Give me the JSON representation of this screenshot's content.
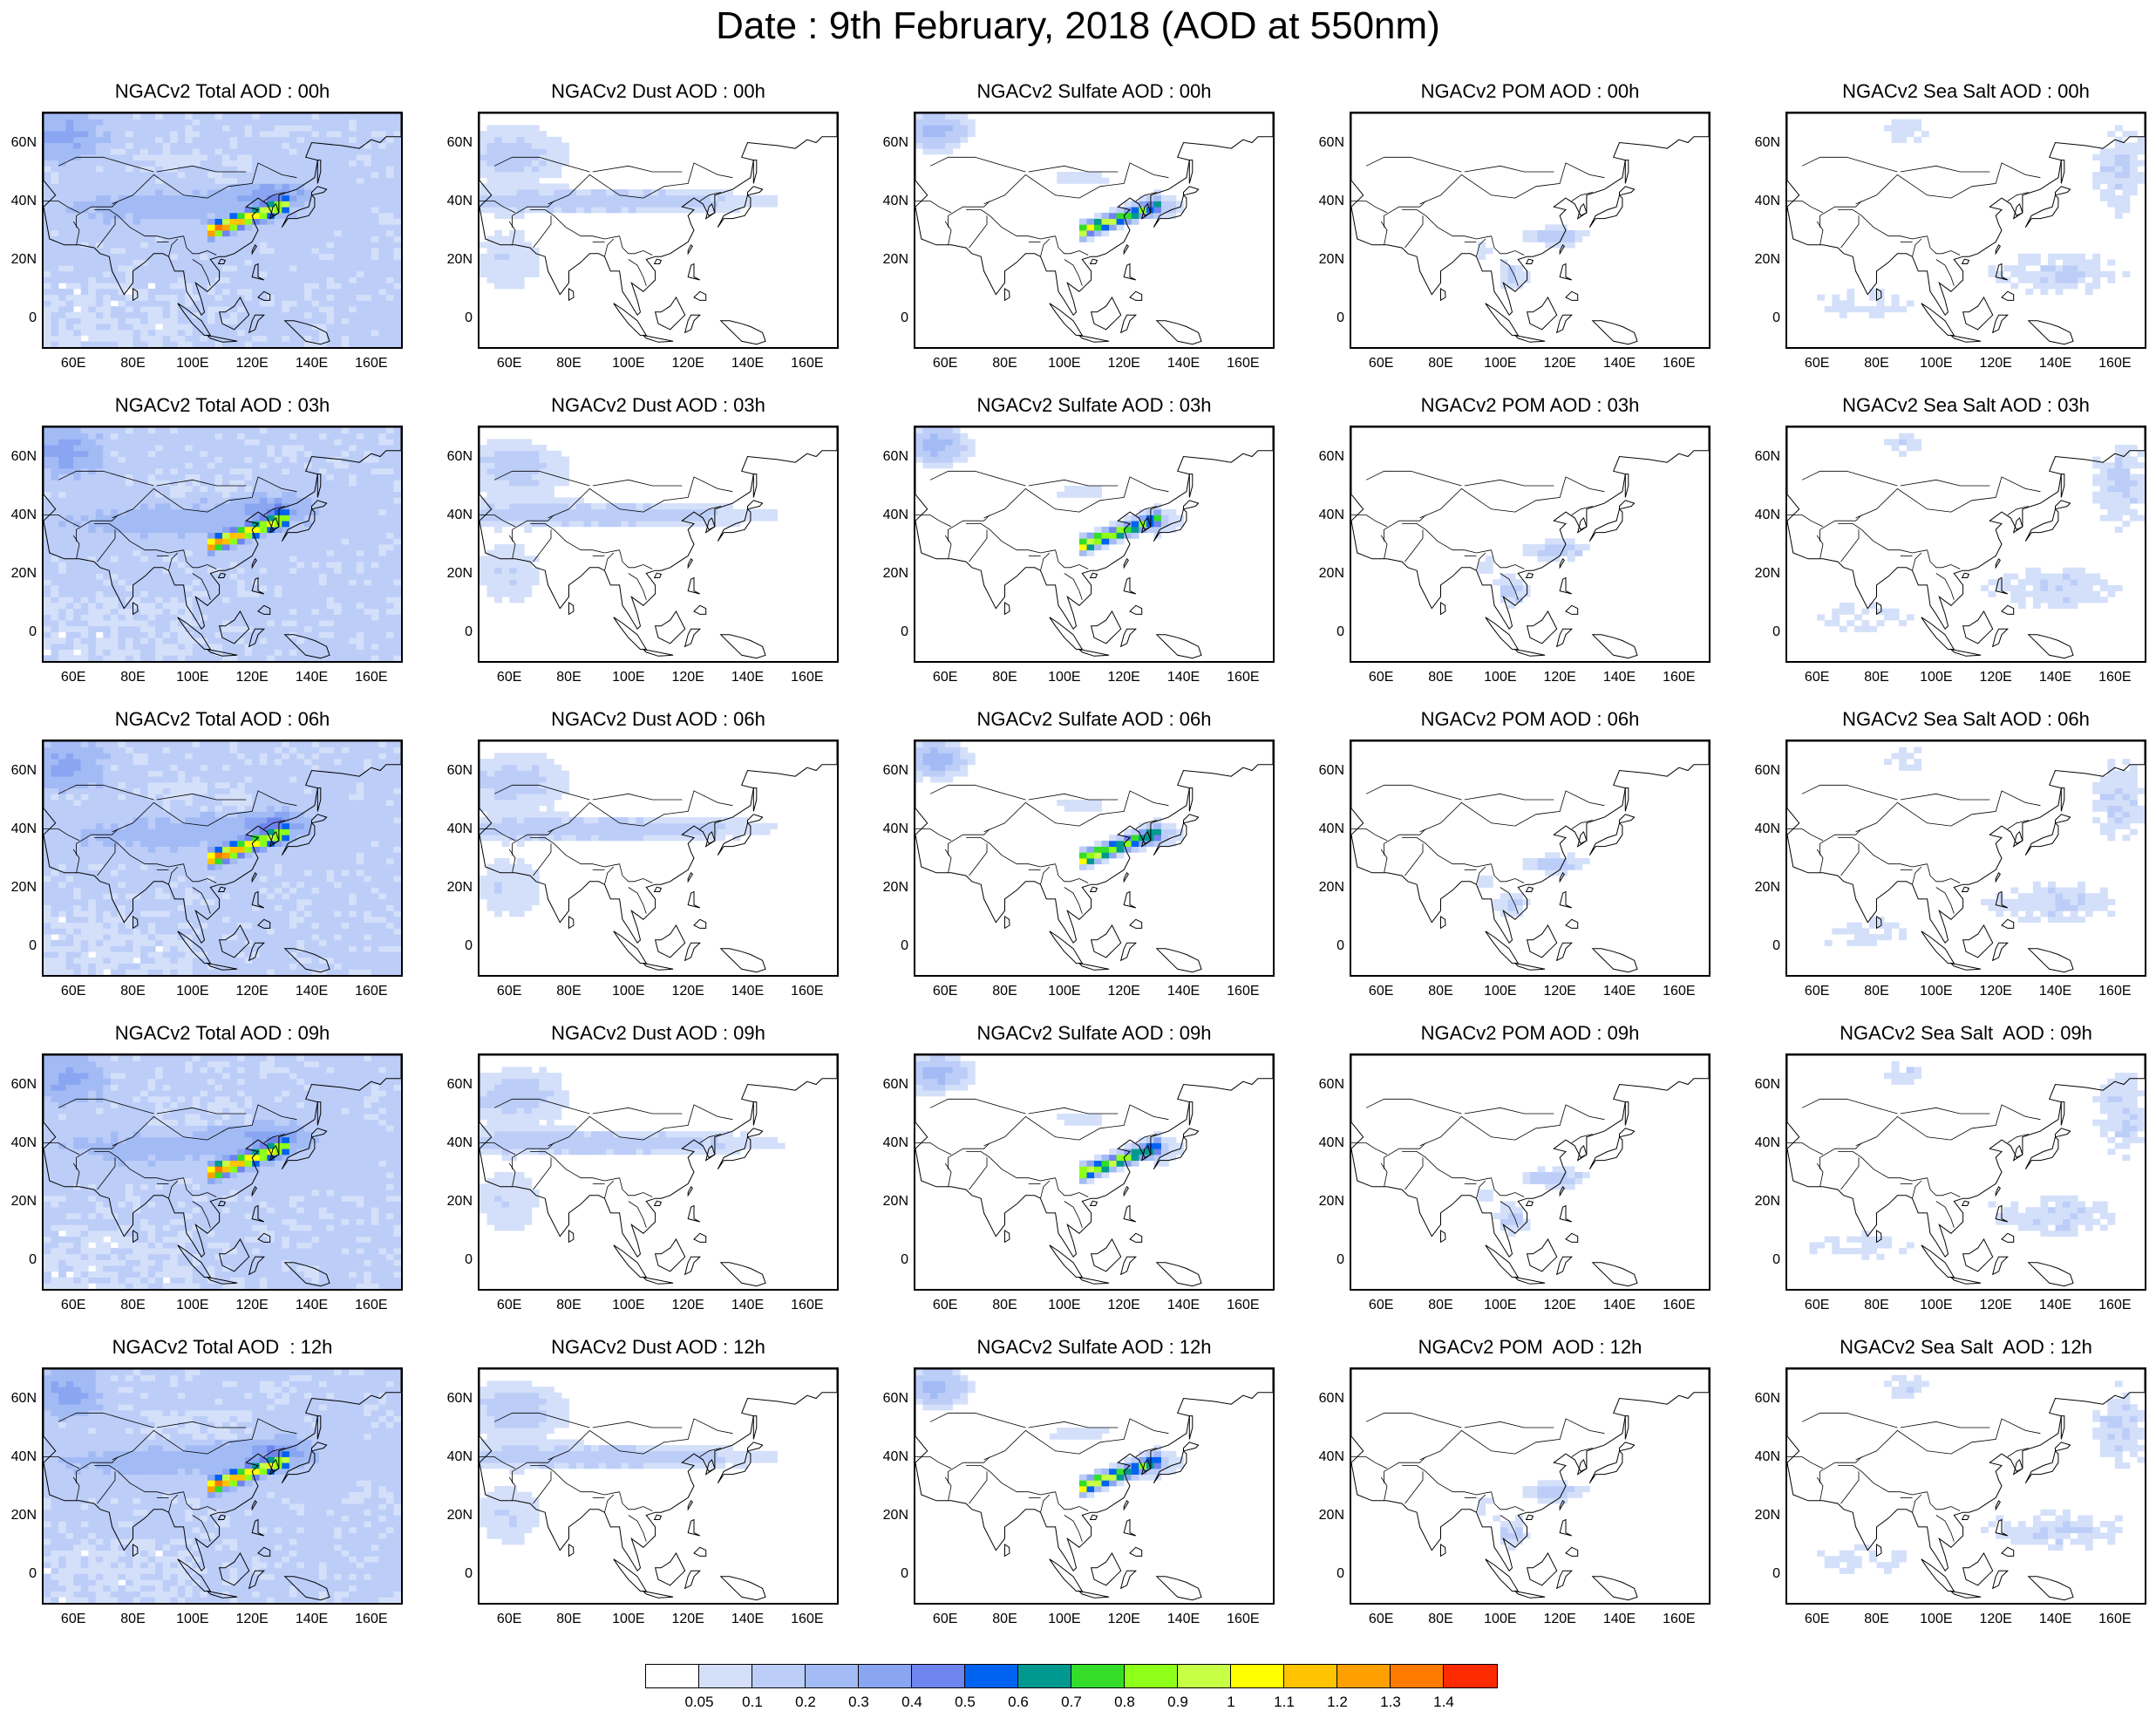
{
  "title": "Date : 9th February, 2018 (AOD at 550nm)",
  "rows": [
    "00h",
    "03h",
    "06h",
    "09h",
    "12h"
  ],
  "columns": [
    {
      "key": "total",
      "kind": "total"
    },
    {
      "key": "dust",
      "kind": "dust"
    },
    {
      "key": "sulfate",
      "kind": "sulfate"
    },
    {
      "key": "pom",
      "kind": "pom"
    },
    {
      "key": "seasalt",
      "kind": "seasalt"
    }
  ],
  "panel_titles": [
    [
      "NGACv2 Total AOD : 00h",
      "NGACv2 Dust AOD : 00h",
      "NGACv2 Sulfate AOD : 00h",
      "NGACv2 POM AOD : 00h",
      "NGACv2 Sea Salt AOD : 00h"
    ],
    [
      "NGACv2 Total AOD : 03h",
      "NGACv2 Dust AOD : 03h",
      "NGACv2 Sulfate AOD : 03h",
      "NGACv2 POM AOD : 03h",
      "NGACv2 Sea Salt AOD : 03h"
    ],
    [
      "NGACv2 Total AOD : 06h",
      "NGACv2 Dust AOD : 06h",
      "NGACv2 Sulfate AOD : 06h",
      "NGACv2 POM AOD : 06h",
      "NGACv2 Sea Salt AOD : 06h"
    ],
    [
      "NGACv2 Total AOD : 09h",
      "NGACv2 Dust AOD : 09h",
      "NGACv2 Sulfate AOD : 09h",
      "NGACv2 POM AOD : 09h",
      "NGACv2 Sea Salt  AOD : 09h"
    ],
    [
      "NGACv2 Total AOD  : 12h",
      "NGACv2 Dust AOD : 12h",
      "NGACv2 Sulfate AOD : 12h",
      "NGACv2 POM  AOD : 12h",
      "NGACv2 Sea Salt  AOD : 12h"
    ]
  ],
  "y_ticks": [
    "60N",
    "40N",
    "20N",
    "0"
  ],
  "x_ticks": [
    "60E",
    "80E",
    "100E",
    "120E",
    "140E",
    "160E"
  ],
  "colorbar": {
    "colors": [
      "#ffffff",
      "#d4e0fa",
      "#bccdf8",
      "#a3bbf5",
      "#8aa6f2",
      "#6e84ee",
      "#0062f0",
      "#00998f",
      "#33dd2a",
      "#8eff18",
      "#c6ff44",
      "#ffff00",
      "#ffc300",
      "#ffa000",
      "#ff7b00",
      "#ff2b00"
    ],
    "labels": [
      "0.05",
      "0.1",
      "0.2",
      "0.3",
      "0.4",
      "0.5",
      "0.6",
      "0.7",
      "0.8",
      "0.9",
      "1",
      "1.1",
      "1.2",
      "1.3",
      "1.4"
    ]
  }
}
